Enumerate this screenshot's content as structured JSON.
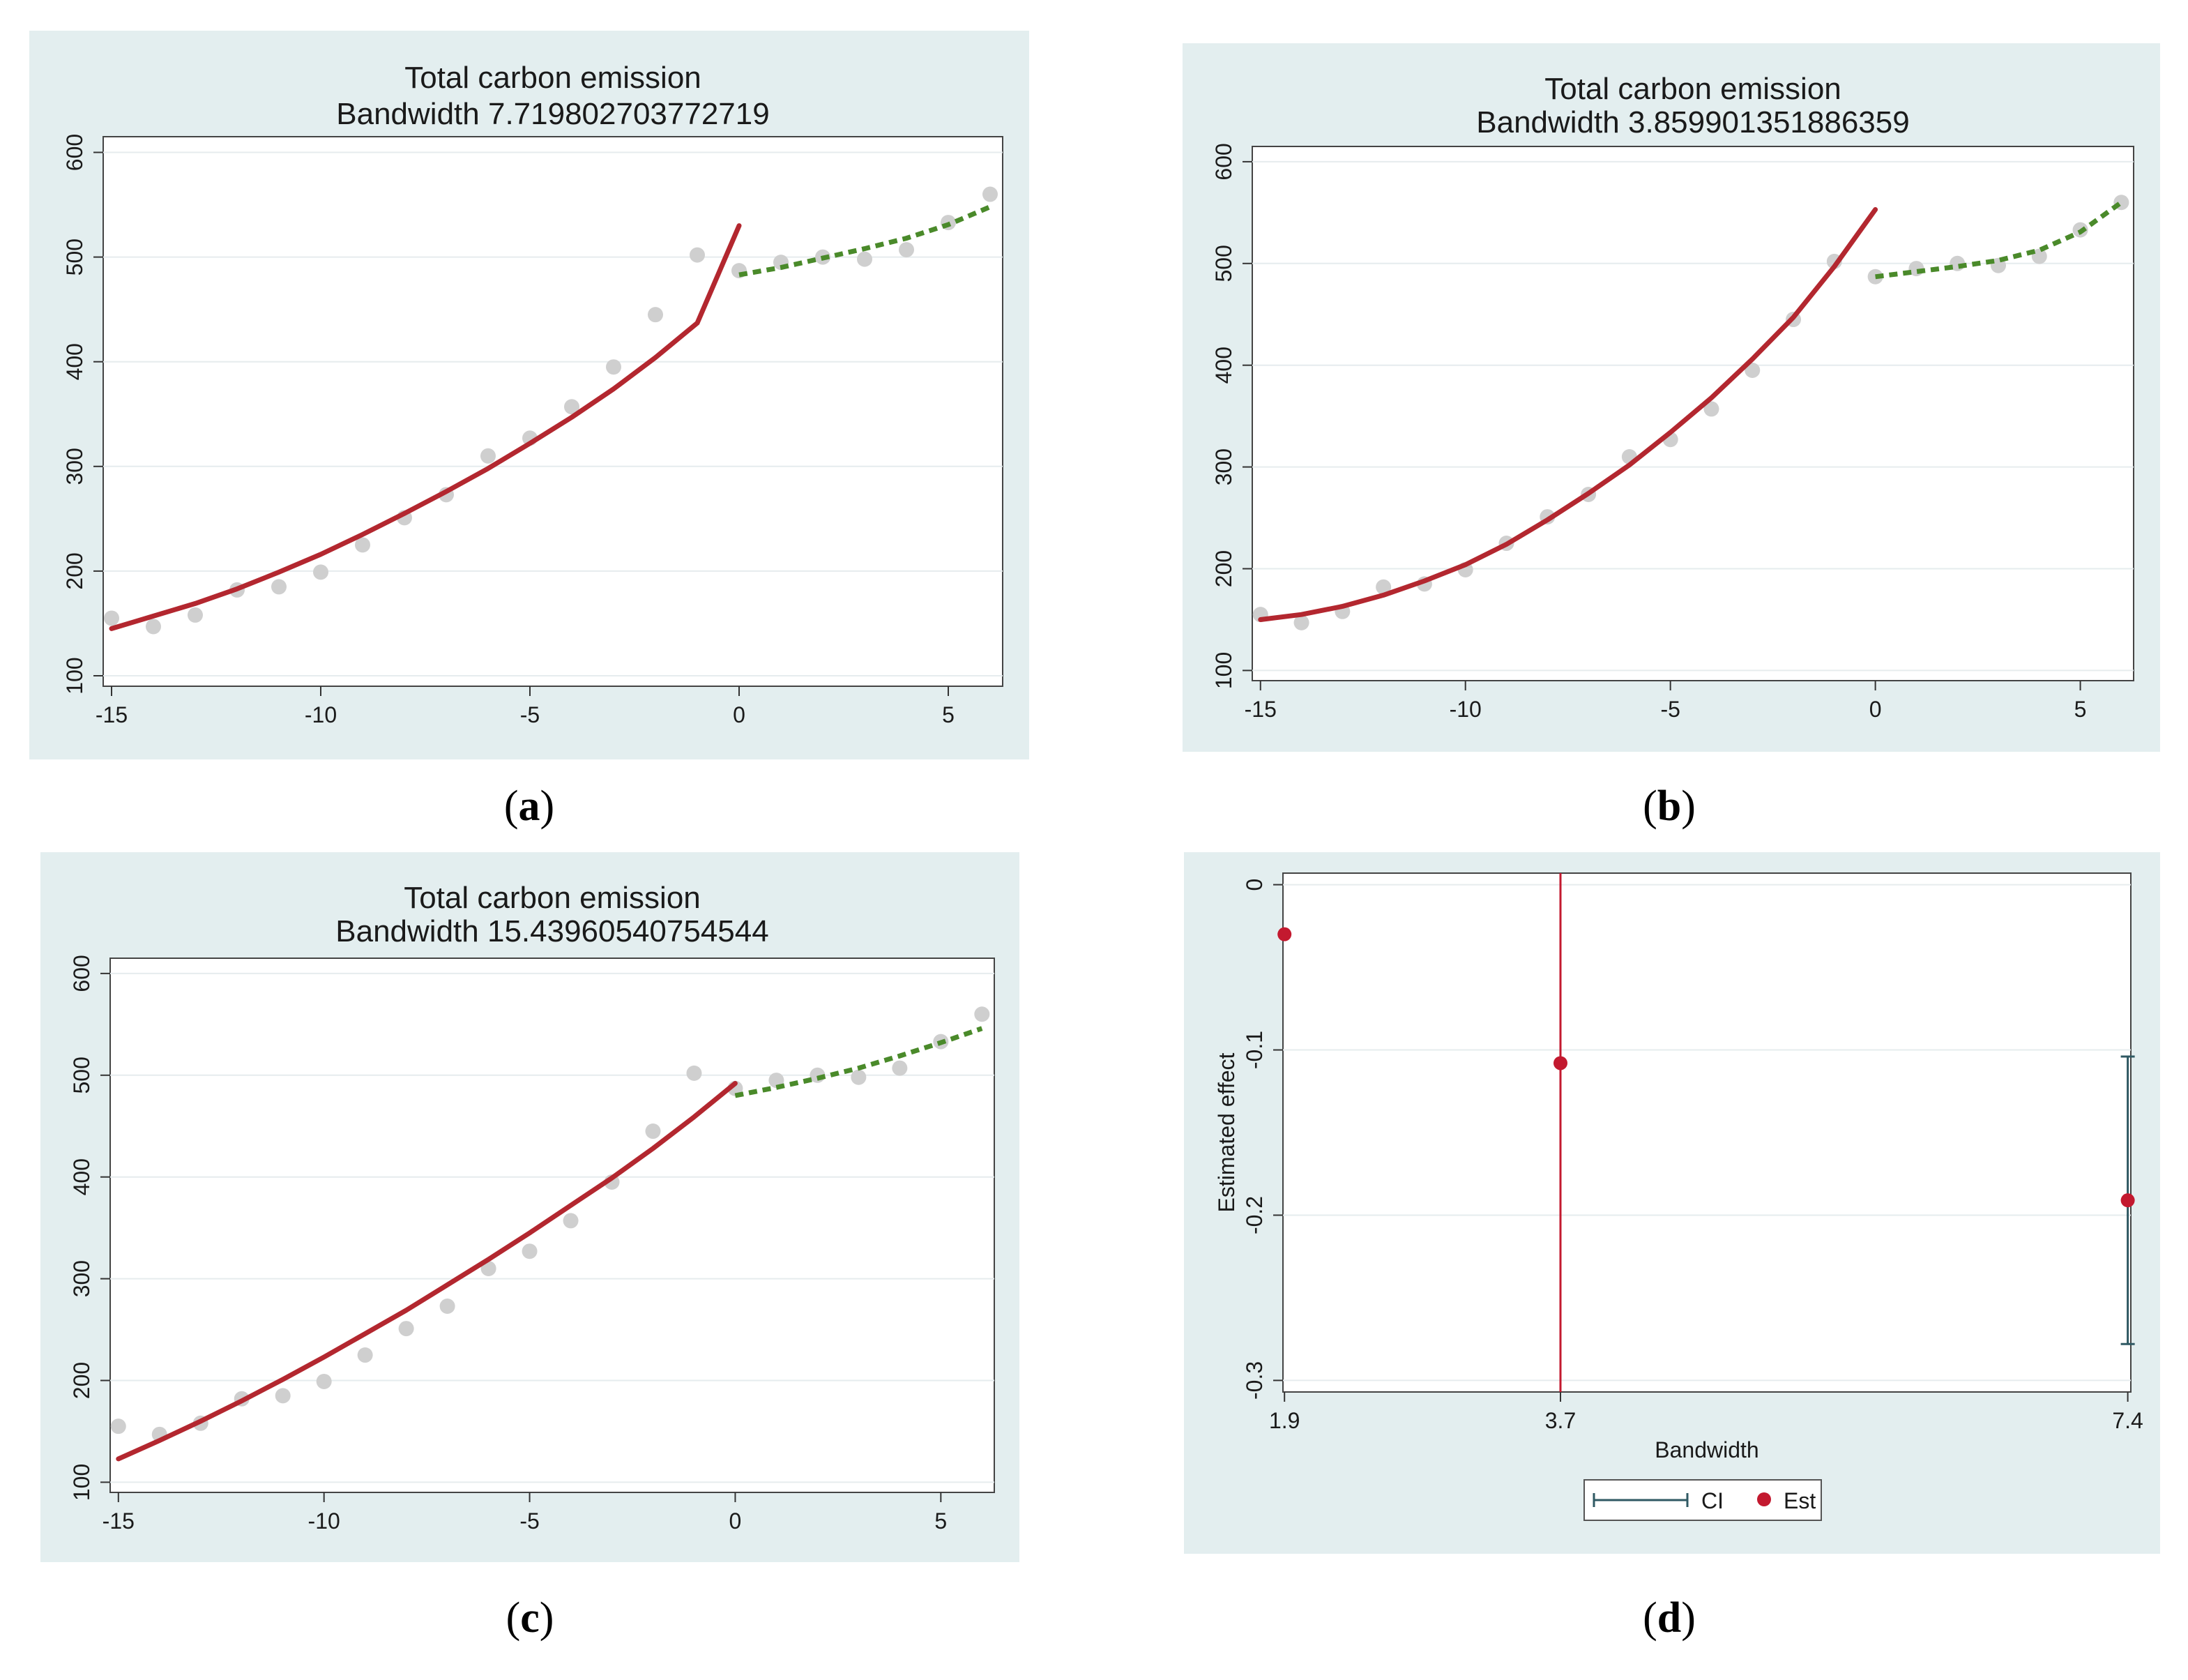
{
  "colors": {
    "panel_bg": "#e3eeef",
    "plot_bg": "#ffffff",
    "grid": "#e6ecee",
    "axis": "#333333",
    "fit_left": "#b3272f",
    "fit_right": "#4a8a2a",
    "scatter": "#cfcfcf",
    "est_point": "#c3192f",
    "ci_line_wide": "#c3192f",
    "ci_line_narrow": "#2f5963"
  },
  "chart_data": [
    {
      "id": "a",
      "type": "scatter",
      "caption": "a",
      "title": "Total carbon emission",
      "subtitle": "Bandwidth 7.719802703772719",
      "xlim": [
        -15.2,
        6.3
      ],
      "ylim": [
        90,
        615
      ],
      "xticks": [
        -15,
        -10,
        -5,
        0,
        5
      ],
      "yticks": [
        100,
        200,
        300,
        400,
        500,
        600
      ],
      "scatter": {
        "x": [
          -15,
          -14,
          -13,
          -12,
          -11,
          -10,
          -9,
          -8,
          -7,
          -6,
          -5,
          -4,
          -3,
          -2,
          -1,
          0,
          1,
          2,
          3,
          4,
          5,
          6
        ],
        "y": [
          155,
          147,
          158,
          182,
          185,
          199,
          225,
          251,
          273,
          310,
          327,
          357,
          395,
          445,
          502,
          487,
          495,
          500,
          498,
          507,
          533,
          560
        ]
      },
      "fit_left": {
        "x": [
          -15,
          -14,
          -13,
          -12,
          -11,
          -10,
          -9,
          -8,
          -7,
          -6,
          -5,
          -4,
          -3,
          -2,
          -1,
          0
        ],
        "y": [
          145,
          157,
          169,
          183,
          199,
          216,
          235,
          255,
          276,
          298,
          322,
          347,
          374,
          404,
          437,
          530
        ]
      },
      "fit_right": {
        "x": [
          0,
          1,
          2,
          3,
          4,
          5,
          6
        ],
        "y": [
          483,
          490,
          499,
          508,
          518,
          531,
          548
        ]
      }
    },
    {
      "id": "b",
      "type": "scatter",
      "caption": "b",
      "title": "Total carbon emission",
      "subtitle": "Bandwidth 3.859901351886359",
      "xlim": [
        -15.2,
        6.3
      ],
      "ylim": [
        90,
        615
      ],
      "xticks": [
        -15,
        -10,
        -5,
        0,
        5
      ],
      "yticks": [
        100,
        200,
        300,
        400,
        500,
        600
      ],
      "scatter": {
        "x": [
          -15,
          -14,
          -13,
          -12,
          -11,
          -10,
          -9,
          -8,
          -7,
          -6,
          -5,
          -4,
          -3,
          -2,
          -1,
          0,
          1,
          2,
          3,
          4,
          5,
          6
        ],
        "y": [
          155,
          147,
          158,
          182,
          185,
          199,
          225,
          251,
          273,
          310,
          327,
          357,
          395,
          445,
          502,
          487,
          495,
          500,
          498,
          507,
          533,
          560
        ]
      },
      "fit_left": {
        "x": [
          -15,
          -14,
          -13,
          -12,
          -11,
          -10,
          -9,
          -8,
          -7,
          -6,
          -5,
          -4,
          -3,
          -2,
          -1,
          0
        ],
        "y": [
          150,
          155,
          163,
          174,
          188,
          204,
          224,
          248,
          274,
          302,
          334,
          368,
          406,
          447,
          497,
          553
        ]
      },
      "fit_right": {
        "x": [
          0,
          1,
          2,
          3,
          4,
          5,
          6
        ],
        "y": [
          487,
          492,
          497,
          503,
          513,
          531,
          560
        ]
      }
    },
    {
      "id": "c",
      "type": "scatter",
      "caption": "c",
      "title": "Total carbon emission",
      "subtitle": "Bandwidth 15.43960540754544",
      "xlim": [
        -15.2,
        6.3
      ],
      "ylim": [
        90,
        615
      ],
      "xticks": [
        -15,
        -10,
        -5,
        0,
        5
      ],
      "yticks": [
        100,
        200,
        300,
        400,
        500,
        600
      ],
      "scatter": {
        "x": [
          -15,
          -14,
          -13,
          -12,
          -11,
          -10,
          -9,
          -8,
          -7,
          -6,
          -5,
          -4,
          -3,
          -2,
          -1,
          0,
          1,
          2,
          3,
          4,
          5,
          6
        ],
        "y": [
          155,
          147,
          158,
          182,
          185,
          199,
          225,
          251,
          273,
          310,
          327,
          357,
          395,
          445,
          502,
          487,
          495,
          500,
          498,
          507,
          533,
          560
        ]
      },
      "fit_left": {
        "x": [
          -15,
          -14,
          -13,
          -12,
          -11,
          -10,
          -9,
          -8,
          -7,
          -6,
          -5,
          -4,
          -3,
          -2,
          -1,
          0
        ],
        "y": [
          123,
          141,
          160,
          180,
          201,
          223,
          246,
          269,
          294,
          319,
          345,
          372,
          399,
          428,
          459,
          492
        ]
      },
      "fit_right": {
        "x": [
          0,
          1,
          2,
          3,
          4,
          5,
          6
        ],
        "y": [
          480,
          488,
          497,
          507,
          519,
          532,
          546
        ]
      }
    },
    {
      "id": "d",
      "type": "scatter",
      "caption": "d",
      "title": "",
      "xlabel": "Bandwidth",
      "ylabel": "Estimated effect",
      "xlim": [
        1.89,
        7.42
      ],
      "ylim": [
        -0.307,
        0.007
      ],
      "xticks": [
        1.9,
        3.7,
        7.4
      ],
      "yticks": [
        0,
        -0.1,
        -0.2,
        -0.3
      ],
      "estimates": [
        {
          "x": 1.9,
          "y": -0.03
        },
        {
          "x": 3.7,
          "y": -0.108
        },
        {
          "x": 7.4,
          "y": -0.191
        }
      ],
      "ci": [
        {
          "x": 3.7,
          "lower": -0.32,
          "upper": 0.02,
          "color_key": "ci_line_wide",
          "capped": false
        },
        {
          "x": 7.4,
          "lower": -0.278,
          "upper": -0.104,
          "color_key": "ci_line_narrow",
          "capped": true
        }
      ],
      "legend": {
        "ci_label": "CI",
        "est_label": "Est"
      }
    }
  ]
}
